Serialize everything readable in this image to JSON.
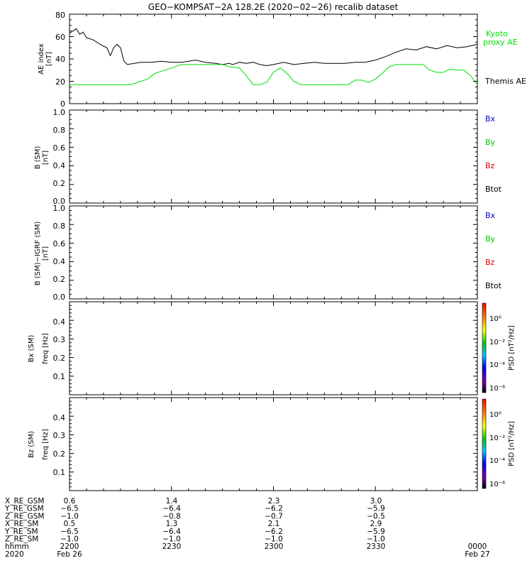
{
  "title": "GEO−KOMPSAT−2A 128.2E (2020−02−26) recalib dataset",
  "colors": {
    "kyoto": "#00e000",
    "themis": "#000000",
    "bx": "#0000c8",
    "by": "#00c800",
    "bz": "#e00000",
    "btot": "#000000",
    "frame": "#000000"
  },
  "chart_data": [
    {
      "type": "line",
      "panel": "ae",
      "ylabel": "AE index",
      "yunit": "[nT]",
      "ylim": [
        0,
        80
      ],
      "yticks": [
        "0",
        "20",
        "40",
        "60",
        "80"
      ],
      "xrange_min": [
        0,
        120
      ],
      "series": [
        {
          "name": "Themis AE",
          "color": "#000000",
          "x": [
            0,
            2,
            3,
            4,
            5,
            7,
            9,
            11,
            12,
            13,
            14,
            15,
            16,
            17,
            19,
            21,
            24,
            27,
            30,
            33,
            35,
            37,
            40,
            43,
            45,
            47,
            48,
            50,
            52,
            54,
            56,
            58,
            60,
            63,
            66,
            69,
            72,
            75,
            78,
            81,
            84,
            87,
            90,
            93,
            96,
            99,
            102,
            105,
            108,
            111,
            114,
            117,
            120
          ],
          "values": [
            63,
            67,
            62,
            64,
            59,
            57,
            53,
            50,
            43,
            50,
            53,
            50,
            38,
            35,
            36,
            37,
            37,
            38,
            37,
            37,
            38,
            39,
            37,
            36,
            35,
            36,
            35,
            37,
            36,
            37,
            35,
            34,
            35,
            37,
            35,
            36,
            37,
            36,
            36,
            36,
            37,
            37,
            39,
            42,
            46,
            49,
            48,
            51,
            49,
            52,
            50,
            51,
            53
          ]
        },
        {
          "name": "Kyoto proxy AE",
          "color": "#00e000",
          "x": [
            0,
            6,
            12,
            18,
            20,
            23,
            25,
            28,
            33,
            45,
            47,
            50,
            52,
            54,
            56,
            58,
            60,
            62,
            64,
            66,
            68,
            70,
            72,
            80,
            82,
            84,
            86,
            88,
            90,
            92,
            94,
            96,
            98,
            100,
            102,
            104,
            106,
            108,
            110,
            112,
            114,
            116,
            118,
            120
          ],
          "values": [
            17,
            17,
            17,
            17,
            19,
            22,
            27,
            30,
            35,
            35,
            33,
            32,
            25,
            17,
            17,
            19,
            28,
            32,
            27,
            20,
            17,
            17,
            17,
            17,
            17,
            21,
            21,
            19,
            22,
            27,
            33,
            35,
            35,
            35,
            35,
            35,
            30,
            28,
            28,
            31,
            30,
            30,
            25,
            17
          ]
        }
      ],
      "legend": [
        "Kyoto",
        "proxy AE",
        "Themis AE"
      ]
    },
    {
      "type": "line",
      "panel": "b",
      "ylabel": "B (SM)",
      "yunit": "[nT]",
      "ylim": [
        0,
        1
      ],
      "yticks": [
        "0.0",
        "0.2",
        "0.4",
        "0.6",
        "0.8",
        "1.0"
      ],
      "series": [],
      "legend": [
        "Bx",
        "By",
        "Bz",
        "Btot"
      ]
    },
    {
      "type": "line",
      "panel": "bdiff",
      "ylabel": "B (SM)−IGRF (SM)",
      "yunit": "[nT]",
      "ylim": [
        0,
        1
      ],
      "yticks": [
        "0.0",
        "0.2",
        "0.4",
        "0.6",
        "0.8",
        "1.0"
      ],
      "series": [],
      "legend": [
        "Bx",
        "By",
        "Bz",
        "Btot"
      ]
    },
    {
      "type": "heatmap",
      "panel": "bxspec",
      "ylabel": "Bx (SM)",
      "yunit": "freq [Hz]",
      "ylim": [
        0,
        0.5
      ],
      "yticks": [
        "0.1",
        "0.2",
        "0.3",
        "0.4"
      ],
      "colorbar_label": "PSD [nT²/Hz]",
      "colorbar_ticks": [
        "10⁰",
        "10⁻²",
        "10⁻⁴",
        "10⁻⁶"
      ]
    },
    {
      "type": "heatmap",
      "panel": "bzspec",
      "ylabel": "Bz (SM)",
      "yunit": "freq [Hz]",
      "ylim": [
        0,
        0.5
      ],
      "yticks": [
        "0.1",
        "0.2",
        "0.3",
        "0.4"
      ],
      "colorbar_label": "PSD [nT²/Hz]",
      "colorbar_ticks": [
        "10⁰",
        "10⁻²",
        "10⁻⁴",
        "10⁻⁶"
      ]
    }
  ],
  "orbit_table": {
    "rows": [
      {
        "label": "X_RE_GSM",
        "values": [
          "0.6",
          "1.4",
          "2.3",
          "3.0",
          ""
        ]
      },
      {
        "label": "Y_RE_GSM",
        "values": [
          "−6.5",
          "−6.4",
          "−6.2",
          "−5.9",
          ""
        ]
      },
      {
        "label": "Z_RE_GSM",
        "values": [
          "−1.0",
          "−0.8",
          "−0.7",
          "−0.5",
          ""
        ]
      },
      {
        "label": "X_RE_SM",
        "values": [
          "0.5",
          "1.3",
          "2.1",
          "2.9",
          ""
        ]
      },
      {
        "label": "Y_RE_SM",
        "values": [
          "−6.5",
          "−6.4",
          "−6.2",
          "−5.9",
          ""
        ]
      },
      {
        "label": "Z_RE_SM",
        "values": [
          "−1.0",
          "−1.0",
          "−1.0",
          "−1.0",
          ""
        ]
      },
      {
        "label": "hhmm",
        "values": [
          "2200",
          "2230",
          "2300",
          "2330",
          "0000"
        ]
      },
      {
        "label": "2020",
        "values": [
          "Feb 26",
          "",
          "",
          "",
          "Feb 27"
        ]
      }
    ]
  }
}
